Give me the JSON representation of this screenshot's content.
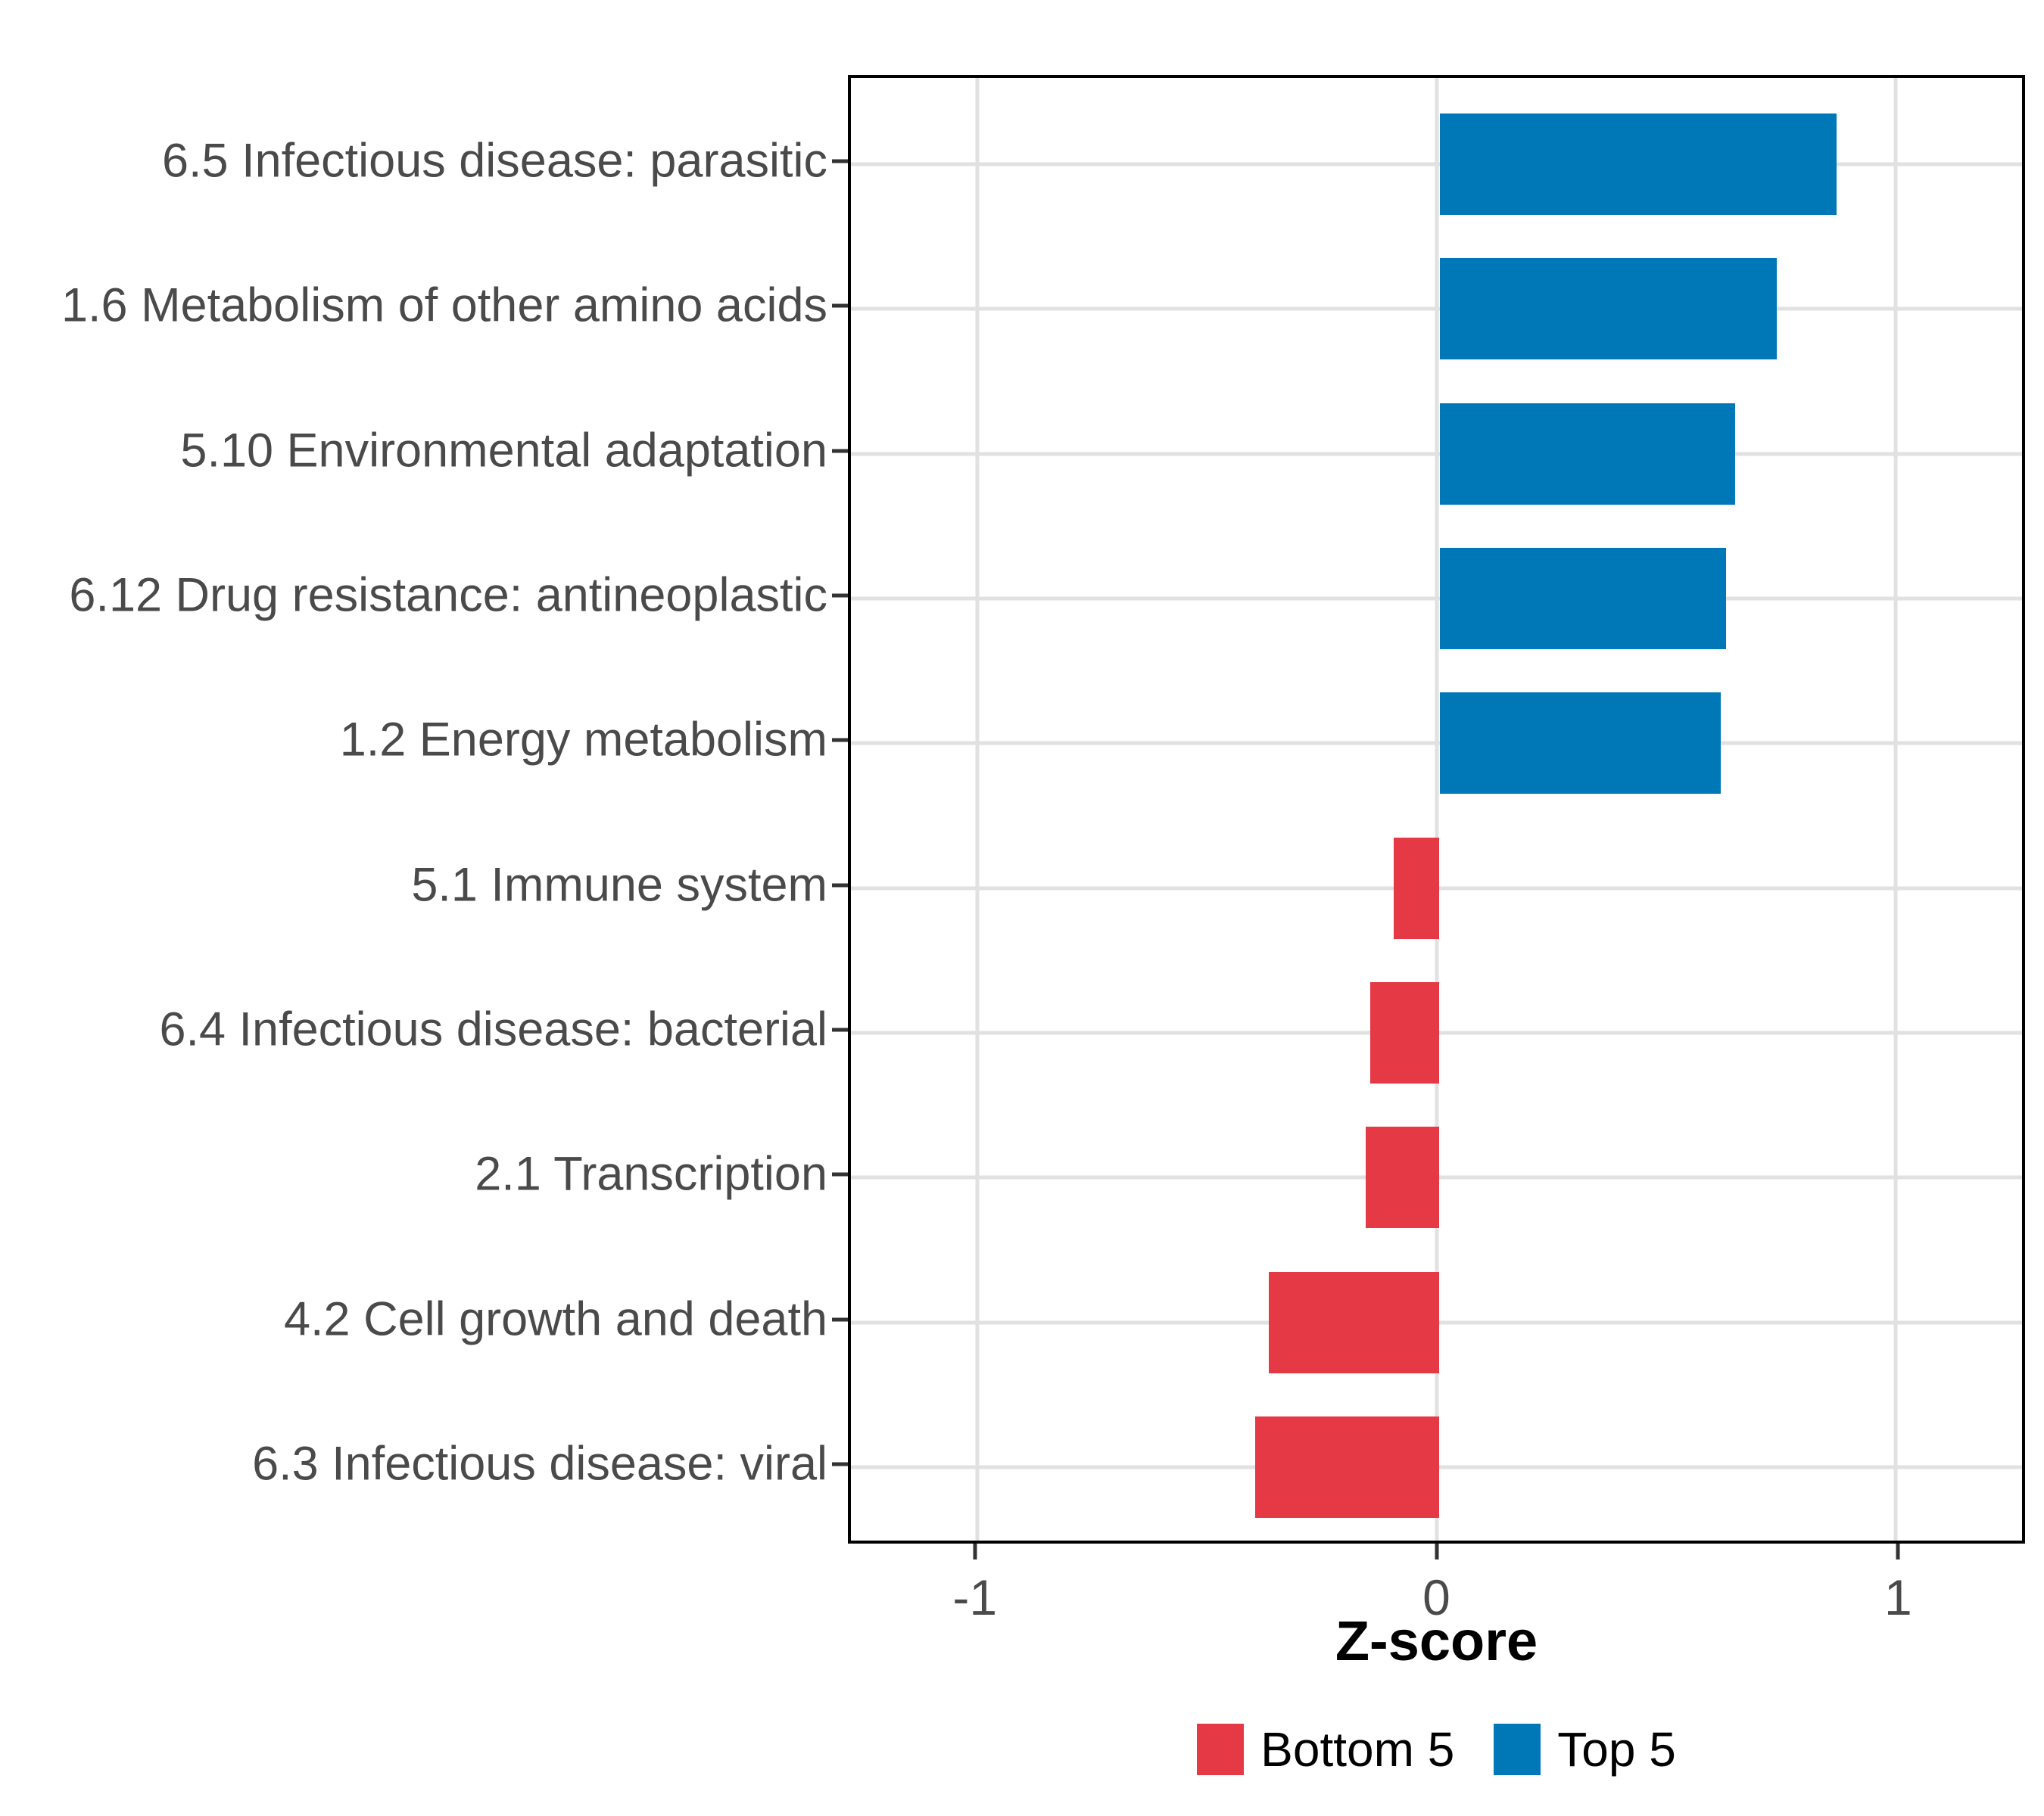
{
  "chart_data": {
    "type": "bar",
    "orientation": "horizontal",
    "title": "",
    "xlabel": "Z-score",
    "ylabel": "",
    "categories": [
      "6.5 Infectious disease: parasitic",
      "1.6 Metabolism of other amino acids",
      "5.10 Environmental adaptation",
      "6.12 Drug resistance: antineoplastic",
      "1.2 Energy metabolism",
      "5.1 Immune system",
      "6.4 Infectious disease: bacterial",
      "2.1 Transcription",
      "4.2 Cell growth and death",
      "6.3 Infectious disease: viral"
    ],
    "values": [
      0.86,
      0.73,
      0.64,
      0.62,
      0.61,
      -0.1,
      -0.15,
      -0.16,
      -0.37,
      -0.4
    ],
    "groups": [
      "Top 5",
      "Top 5",
      "Top 5",
      "Top 5",
      "Top 5",
      "Bottom 5",
      "Bottom 5",
      "Bottom 5",
      "Bottom 5",
      "Bottom 5"
    ],
    "xlim": [
      -1.275,
      1.275
    ],
    "x_ticks": [
      -1,
      0,
      1
    ],
    "x_tick_labels": [
      "-1",
      "0",
      "1"
    ],
    "grid": true,
    "legend_position": "bottom",
    "legend": [
      {
        "label": "Bottom 5",
        "color": "#E63946"
      },
      {
        "label": "Top 5",
        "color": "#0077B6"
      }
    ]
  },
  "colors": {
    "bar_top5": "#0077B6",
    "bar_bottom5": "#E63946",
    "gridline": "#E1E1E1",
    "panel_border": "#000000",
    "axis_text": "#4A4A4A",
    "tick_mark": "#333333"
  }
}
